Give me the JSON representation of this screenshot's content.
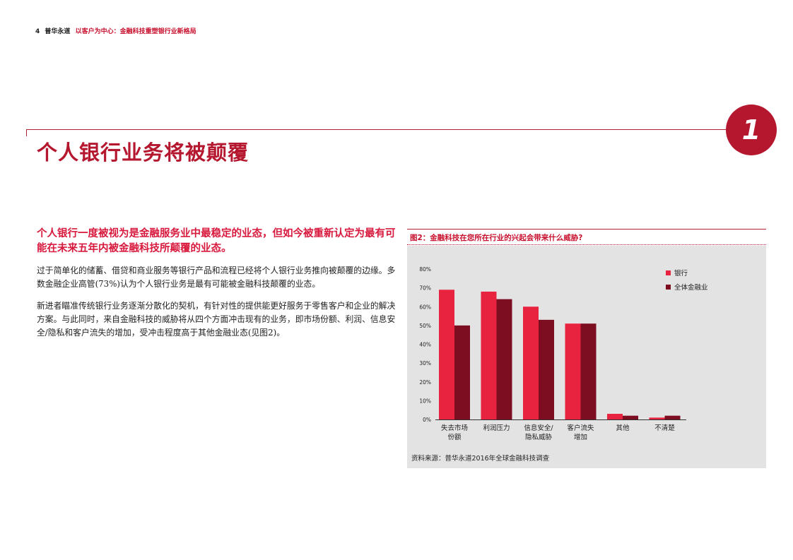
{
  "header": {
    "page_number": "4",
    "brand": "普华永道",
    "subtitle": "以客户为中心：金融科技重塑银行业新格局"
  },
  "section": {
    "badge": "1",
    "title": "个人银行业务将被颠覆"
  },
  "body": {
    "lead": "个人银行一度被视为是金融服务业中最稳定的业态，但如今被重新认定为最有可能在未来五年内被金融科技所颠覆的业态。",
    "para1": "过于简单化的储蓄、借贷和商业服务等银行产品和流程已经将个人银行业务推向被颠覆的边缘。多数金融企业高管(73%)认为个人银行业务是最有可能被金融科技颠覆的业态。",
    "para2": "新进者瞄准传统银行业务逐渐分散化的契机，有针对性的提供能更好服务于零售客户和企业的解决方案。与此同时，来自金融科技的威胁将从四个方面冲击现有的业务，即市场份额、利润、信息安全/隐私和客户流失的增加，受冲击程度高于其他金融业态(见图2)。"
  },
  "figure": {
    "title": "图2：金融科技在您所在行业的兴起会带来什么威胁?",
    "source": "资料来源：普华永道2016年全球金融科技调查"
  },
  "colors": {
    "bank": "#e8233f",
    "all": "#7d0e22",
    "accent": "#b5172f"
  },
  "chart_data": {
    "type": "bar",
    "categories": [
      [
        "失去市场",
        "份额"
      ],
      [
        "利润压力"
      ],
      [
        "信息安全/",
        "隐私威胁"
      ],
      [
        "客户流失",
        "增加"
      ],
      [
        "其他"
      ],
      [
        "不清楚"
      ]
    ],
    "series": [
      {
        "name": "银行",
        "values": [
          69,
          68,
          60,
          51,
          3,
          1
        ]
      },
      {
        "name": "全体金融业",
        "values": [
          50,
          64,
          53,
          51,
          2,
          2
        ]
      }
    ],
    "ylim": [
      0,
      80
    ],
    "yticks": [
      "0%",
      "10%",
      "20%",
      "30%",
      "40%",
      "50%",
      "60%",
      "70%",
      "80%"
    ],
    "legend_position": "top-right",
    "grid": false
  }
}
